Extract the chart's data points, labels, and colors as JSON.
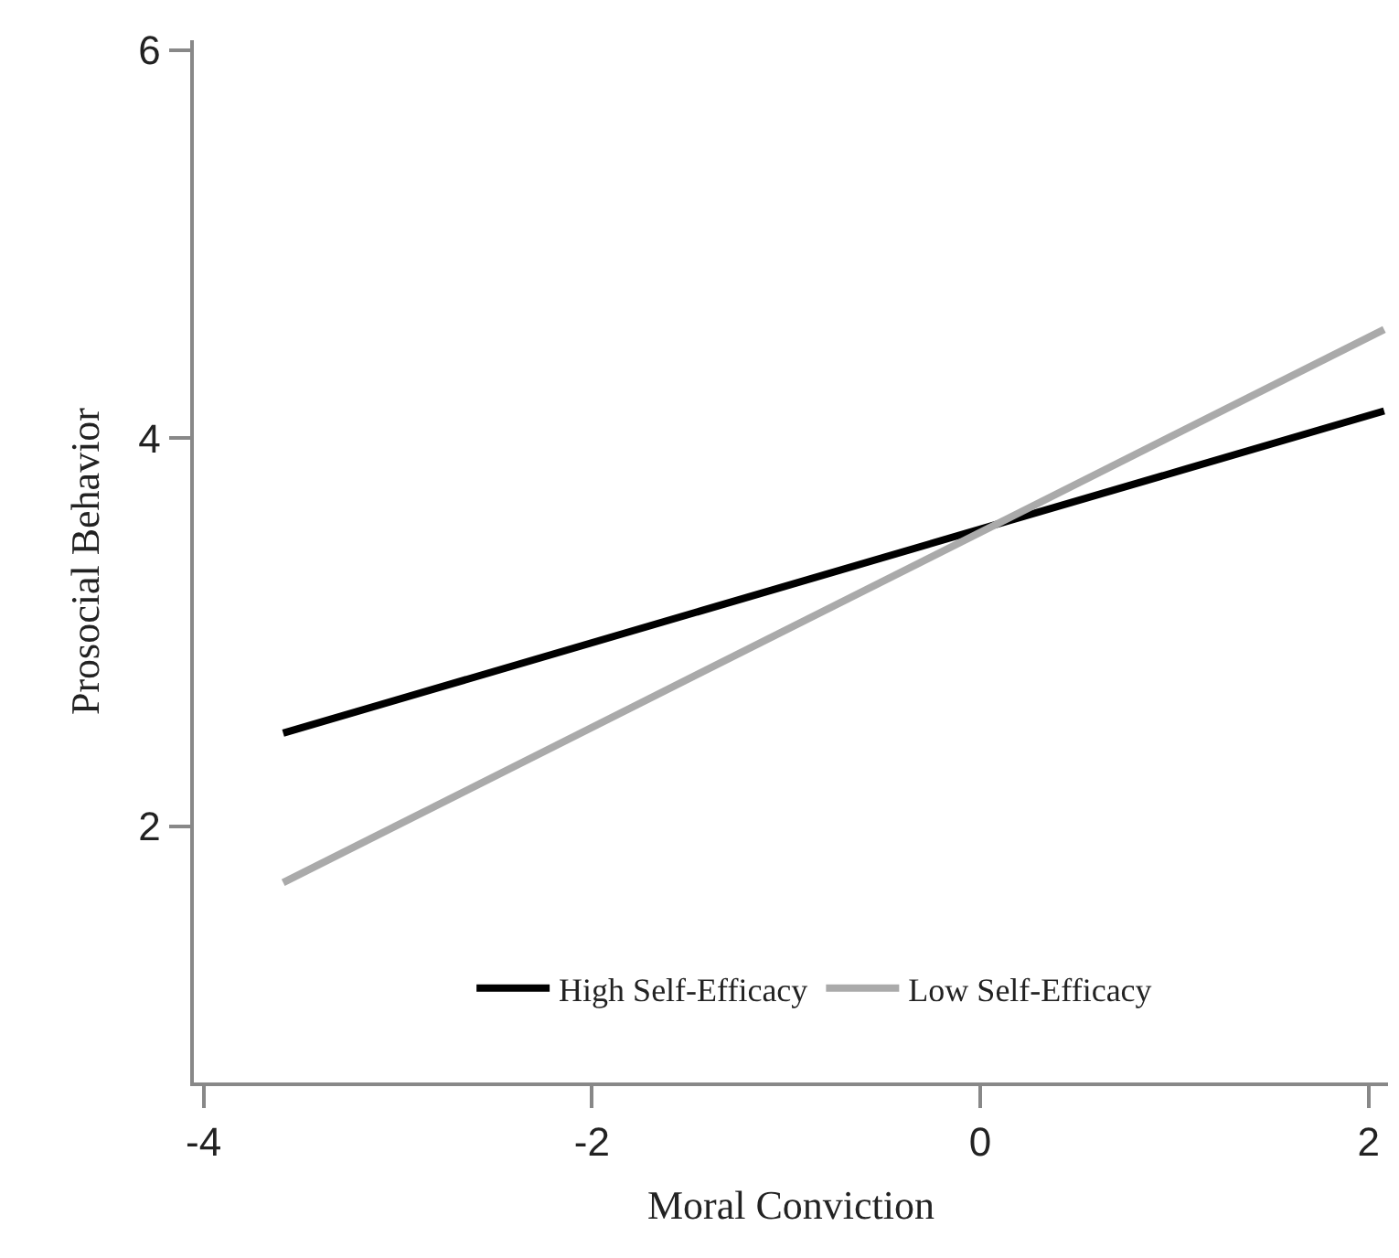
{
  "chart_data": {
    "type": "line",
    "xlabel": "Moral Conviction",
    "ylabel": "Prosocial Behavior",
    "x": [
      -3.59,
      2.08
    ],
    "series": [
      {
        "name": "High Self-Efficacy",
        "color": "#000000",
        "values": [
          2.48,
          4.14
        ]
      },
      {
        "name": "Low Self-Efficacy",
        "color": "#aaaaaa",
        "values": [
          1.71,
          4.56
        ]
      }
    ],
    "xlim": [
      -4.05,
      2.1
    ],
    "xticks": [
      -4,
      -2,
      0,
      2
    ],
    "ylim": [
      0.68,
      6.05
    ],
    "yticks": [
      2,
      4,
      6
    ],
    "legend": "bottom",
    "marker": "none",
    "line_style": "solid"
  }
}
